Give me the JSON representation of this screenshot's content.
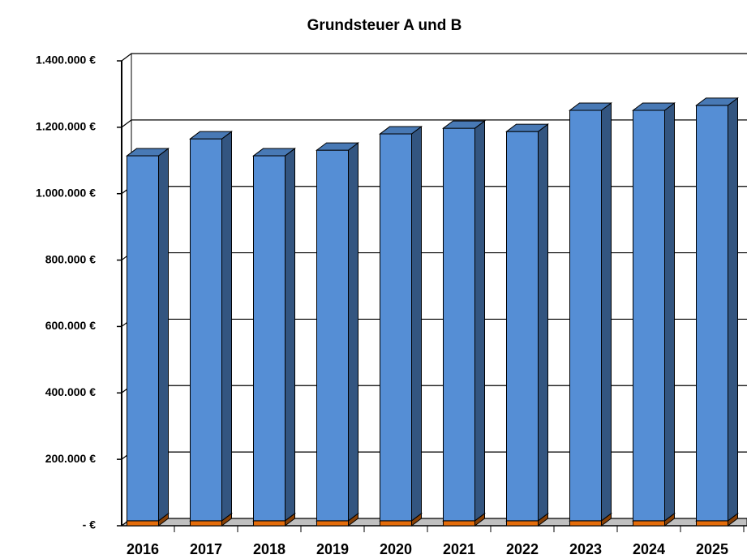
{
  "chart_data": {
    "type": "bar",
    "stacked": true,
    "title": "Grundsteuer A und B",
    "categories": [
      "2016",
      "2017",
      "2018",
      "2019",
      "2020",
      "2021",
      "2022",
      "2023",
      "2024",
      "2025"
    ],
    "series": [
      {
        "color": "#e46c0a",
        "values": [
          15000,
          15000,
          15000,
          15000,
          15000,
          15000,
          15000,
          15000,
          15000,
          15000
        ]
      },
      {
        "color": "#558ed5",
        "values": [
          1099000,
          1150000,
          1099000,
          1116000,
          1165000,
          1182000,
          1172000,
          1236000,
          1236000,
          1251000
        ]
      }
    ],
    "ylim": [
      0,
      1400000
    ],
    "yticks": [
      {
        "value": 0,
        "label": "- €"
      },
      {
        "value": 200000,
        "label": "200.000 €"
      },
      {
        "value": 400000,
        "label": "400.000 €"
      },
      {
        "value": 600000,
        "label": "600.000 €"
      },
      {
        "value": 800000,
        "label": "800.000 €"
      },
      {
        "value": 1000000,
        "label": "1.000.000 €"
      },
      {
        "value": 1200000,
        "label": "1.200.000 €"
      },
      {
        "value": 1400000,
        "label": "1.400.000 €"
      }
    ],
    "grid": true
  }
}
